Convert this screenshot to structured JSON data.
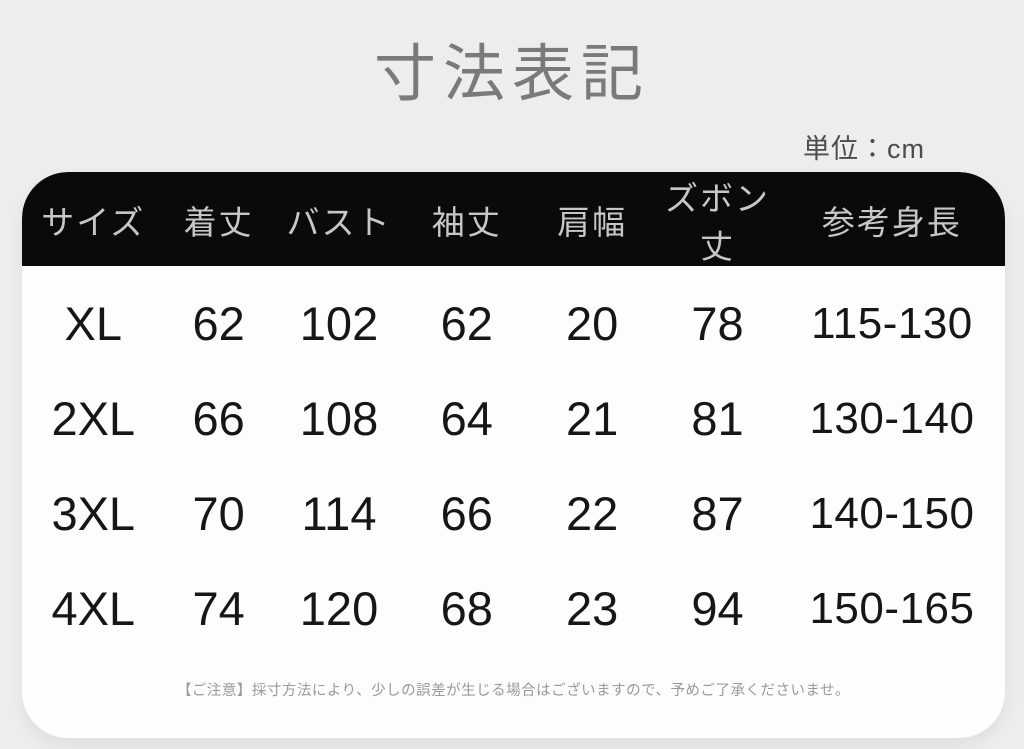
{
  "title": "寸法表記",
  "unit_label": "単位：cm",
  "note": "【ご注意】採寸方法により、少しの誤差が生じる場合はございますので、予めご了承くださいませ。",
  "colors": {
    "page_background": "#ededeb",
    "card_background": "#fdfdfd",
    "header_background": "#0a0a0a",
    "header_text": "#c7c7c7",
    "title_text": "#7a7a7a",
    "body_text": "#161616",
    "note_text": "#9a9a9a"
  },
  "table": {
    "columns": [
      "サイズ",
      "着丈",
      "バスト",
      "袖丈",
      "肩幅",
      "ズボン丈",
      "参考身長"
    ],
    "rows": [
      [
        "XL",
        "62",
        "102",
        "62",
        "20",
        "78",
        "115-130"
      ],
      [
        "2XL",
        "66",
        "108",
        "64",
        "21",
        "81",
        "130-140"
      ],
      [
        "3XL",
        "70",
        "114",
        "66",
        "22",
        "87",
        "140-150"
      ],
      [
        "4XL",
        "74",
        "120",
        "68",
        "23",
        "94",
        "150-165"
      ]
    ]
  }
}
